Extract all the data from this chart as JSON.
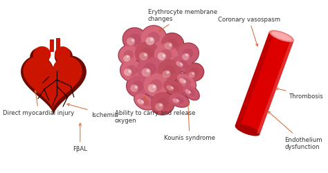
{
  "bg_color": "#ffffff",
  "arrow_color": "#d4622a",
  "text_color": "#333333",
  "heart_color": "#cc1500",
  "heart_dark": "#6b0a00",
  "heart_vein": "#1a0000",
  "rbc_dark": "#c05060",
  "rbc_mid": "#d4687a",
  "rbc_light": "#e8a0a8",
  "rbc_highlight": "#f2c8cc",
  "vessel_color": "#dd0000",
  "vessel_top": "#ee6666",
  "vessel_dark": "#aa0000",
  "figsize": [
    4.74,
    2.51
  ],
  "dpi": 100,
  "xlim": [
    0,
    10
  ],
  "ylim": [
    0,
    5.3
  ],
  "font_size": 6.2,
  "labels": {
    "erythrocyte": "Erythrocyte membrane\nchanges",
    "coronary": "Coronary vasospasm",
    "oxygen": "Ability to carry and release\noxygen",
    "ischemia": "Ischemia",
    "direct": "Direct myocardial injury",
    "fbal": "FβAL",
    "kounis": "Kounis syndrome",
    "thrombosis": "Thrombosis",
    "endothelium": "Endothelium\ndysfunction"
  }
}
